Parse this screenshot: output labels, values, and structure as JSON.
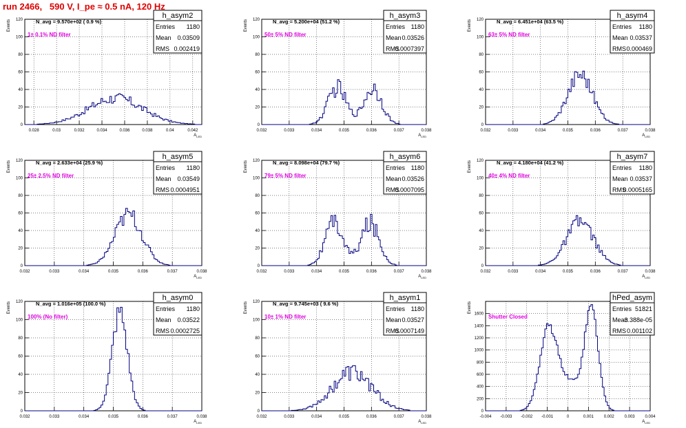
{
  "run_title": "run 2466,   590 V, I_pe ≈ 0.5 nA, 120 Hz",
  "chart_data": [
    {
      "type": "bar",
      "name": "h_asym2",
      "navg": "N_avg = 9.570e+02 ( 0.9 %)",
      "filter": "1± 0.1% ND filter",
      "stats": {
        "Entries": "1180",
        "Mean": "0.03509",
        "RMS": "0.002419"
      },
      "xlim": [
        0.0272,
        0.0428
      ],
      "ylim": [
        0,
        120
      ],
      "xticks": [
        "0.028",
        "0.03",
        "0.032",
        "0.034",
        "0.036",
        "0.038",
        "0.04",
        "0.042"
      ],
      "yticks": [
        "0",
        "20",
        "40",
        "60",
        "80",
        "100",
        "120"
      ],
      "xlabel": "A_{LED}",
      "ylabel": "Events",
      "shape": {
        "kind": "gauss",
        "mu": 0.0352,
        "sigma": 0.0024,
        "amp": 30,
        "noise": 0.22
      },
      "nbins": 100
    },
    {
      "type": "bar",
      "name": "h_asym3",
      "navg": "N_avg = 5.200e+04 (51.2 %)",
      "filter": "50± 5% ND filter",
      "stats": {
        "Entries": "1180",
        "Mean": "0.03526",
        "RMS": "0.0007397"
      },
      "xlim": [
        0.032,
        0.038
      ],
      "ylim": [
        0,
        120
      ],
      "xticks": [
        "0.032",
        "0.033",
        "0.034",
        "0.035",
        "0.036",
        "0.037",
        "0.038"
      ],
      "yticks": [
        "0",
        "20",
        "40",
        "60",
        "80",
        "100",
        "120"
      ],
      "xlabel": "A_{LED}",
      "ylabel": "Events",
      "shape": {
        "kind": "double",
        "mu1": 0.03475,
        "mu2": 0.03605,
        "sigma": 0.00033,
        "amp": 42,
        "noise": 0.25
      },
      "nbins": 100
    },
    {
      "type": "bar",
      "name": "h_asym4",
      "navg": "N_avg = 6.451e+04 (63.5 %)",
      "filter": "63± 5% ND filter",
      "stats": {
        "Entries": "1180",
        "Mean": "0.03537",
        "RMS": "0.000469"
      },
      "xlim": [
        0.032,
        0.038
      ],
      "ylim": [
        0,
        120
      ],
      "xticks": [
        "0.032",
        "0.033",
        "0.034",
        "0.035",
        "0.036",
        "0.037",
        "0.038"
      ],
      "yticks": [
        "0",
        "20",
        "40",
        "60",
        "80",
        "100",
        "120"
      ],
      "xlabel": "A_{LED}",
      "ylabel": "Events",
      "shape": {
        "kind": "gauss",
        "mu": 0.03545,
        "sigma": 0.00045,
        "amp": 58,
        "noise": 0.18
      },
      "nbins": 100
    },
    {
      "type": "bar",
      "name": "h_asym5",
      "navg": "N_avg = 2.633e+04 (25.9 %)",
      "filter": "25± 2.5% ND filter",
      "stats": {
        "Entries": "1180",
        "Mean": "0.03549",
        "RMS": "0.0004951"
      },
      "xlim": [
        0.032,
        0.038
      ],
      "ylim": [
        0,
        120
      ],
      "xticks": [
        "0.032",
        "0.033",
        "0.034",
        "0.035",
        "0.036",
        "0.037",
        "0.038"
      ],
      "yticks": [
        "0",
        "20",
        "40",
        "60",
        "80",
        "100",
        "120"
      ],
      "xlabel": "A_{LED}",
      "ylabel": "Events",
      "shape": {
        "kind": "gauss",
        "mu": 0.03552,
        "sigma": 0.00046,
        "amp": 58,
        "noise": 0.18
      },
      "nbins": 100
    },
    {
      "type": "bar",
      "name": "h_asym6",
      "navg": "N_avg = 8.098e+04 (79.7 %)",
      "filter": "79± 5% ND filter",
      "stats": {
        "Entries": "1180",
        "Mean": "0.03526",
        "RMS": "0.0007095"
      },
      "xlim": [
        0.032,
        0.038
      ],
      "ylim": [
        0,
        120
      ],
      "xticks": [
        "0.032",
        "0.033",
        "0.034",
        "0.035",
        "0.036",
        "0.037",
        "0.038"
      ],
      "yticks": [
        "0",
        "20",
        "40",
        "60",
        "80",
        "100",
        "120"
      ],
      "xlabel": "A_{LED}",
      "ylabel": "Events",
      "shape": {
        "kind": "double",
        "mu1": 0.03465,
        "mu2": 0.03595,
        "sigma": 0.00033,
        "amp": 48,
        "noise": 0.25
      },
      "nbins": 100
    },
    {
      "type": "bar",
      "name": "h_asym7",
      "navg": "N_avg = 4.180e+04 (41.2 %)",
      "filter": "40± 4% ND filter",
      "stats": {
        "Entries": "1180",
        "Mean": "0.03537",
        "RMS": "0.0005165"
      },
      "xlim": [
        0.032,
        0.038
      ],
      "ylim": [
        0,
        120
      ],
      "xticks": [
        "0.032",
        "0.033",
        "0.034",
        "0.035",
        "0.036",
        "0.037",
        "0.038"
      ],
      "yticks": [
        "0",
        "20",
        "40",
        "60",
        "80",
        "100",
        "120"
      ],
      "xlabel": "A_{LED}",
      "ylabel": "Events",
      "shape": {
        "kind": "gauss",
        "mu": 0.03545,
        "sigma": 0.0005,
        "amp": 50,
        "noise": 0.18
      },
      "nbins": 100
    },
    {
      "type": "bar",
      "name": "h_asym0",
      "navg": "N_avg = 1.016e+05 (100.0 %)",
      "filter": "100% (No filter)",
      "stats": {
        "Entries": "1180",
        "Mean": "0.03522",
        "RMS": "0.0002725"
      },
      "xlim": [
        0.032,
        0.038
      ],
      "ylim": [
        0,
        120
      ],
      "xticks": [
        "0.032",
        "0.033",
        "0.034",
        "0.035",
        "0.036",
        "0.037",
        "0.038"
      ],
      "yticks": [
        "0",
        "20",
        "40",
        "60",
        "80",
        "100",
        "120"
      ],
      "xlabel": "A_{LED}",
      "ylabel": "Events",
      "shape": {
        "kind": "gauss",
        "mu": 0.03522,
        "sigma": 0.00026,
        "amp": 108,
        "noise": 0.12
      },
      "nbins": 100
    },
    {
      "type": "bar",
      "name": "h_asym1",
      "navg": "N_avg = 9.745e+03 ( 9.6 %)",
      "filter": "10± 1% ND filter",
      "stats": {
        "Entries": "1180",
        "Mean": "0.03527",
        "RMS": "0.0007149"
      },
      "xlim": [
        0.032,
        0.038
      ],
      "ylim": [
        0,
        120
      ],
      "xticks": [
        "0.032",
        "0.033",
        "0.034",
        "0.035",
        "0.036",
        "0.037",
        "0.038"
      ],
      "yticks": [
        "0",
        "20",
        "40",
        "60",
        "80",
        "100",
        "120"
      ],
      "xlabel": "A_{LED}",
      "ylabel": "Events",
      "shape": {
        "kind": "gauss",
        "mu": 0.0353,
        "sigma": 0.00072,
        "amp": 42,
        "noise": 0.25
      },
      "nbins": 100
    },
    {
      "type": "bar",
      "name": "hPed_asym",
      "navg": "",
      "filter": "Shutter Closed",
      "stats": {
        "Entries": "51821",
        "Mean": "-3.388e-05",
        "RMS": "0.001102"
      },
      "xlim": [
        -0.004,
        0.004
      ],
      "ylim": [
        0,
        1800
      ],
      "xticks": [
        "-0.004",
        "-0.003",
        "-0.002",
        "-0.001",
        "0",
        "0.001",
        "0.002",
        "0.003",
        "0.004"
      ],
      "yticks": [
        "0",
        "200",
        "400",
        "600",
        "800",
        "1000",
        "1200",
        "1400",
        "1600"
      ],
      "xlabel": "A_{LED}",
      "ylabel": "Events",
      "shape": {
        "kind": "double2",
        "mu1": -0.00095,
        "s1": 0.00042,
        "a1": 1300,
        "mu2": 0.00115,
        "s2": 0.00033,
        "a2": 1620,
        "noise": 0.05
      },
      "nbins": 100
    }
  ],
  "colors": {
    "title": "#e00000",
    "filter_label": "#e000e0",
    "histogram": "#000080",
    "axis": "#000000",
    "grid": "#000000"
  }
}
